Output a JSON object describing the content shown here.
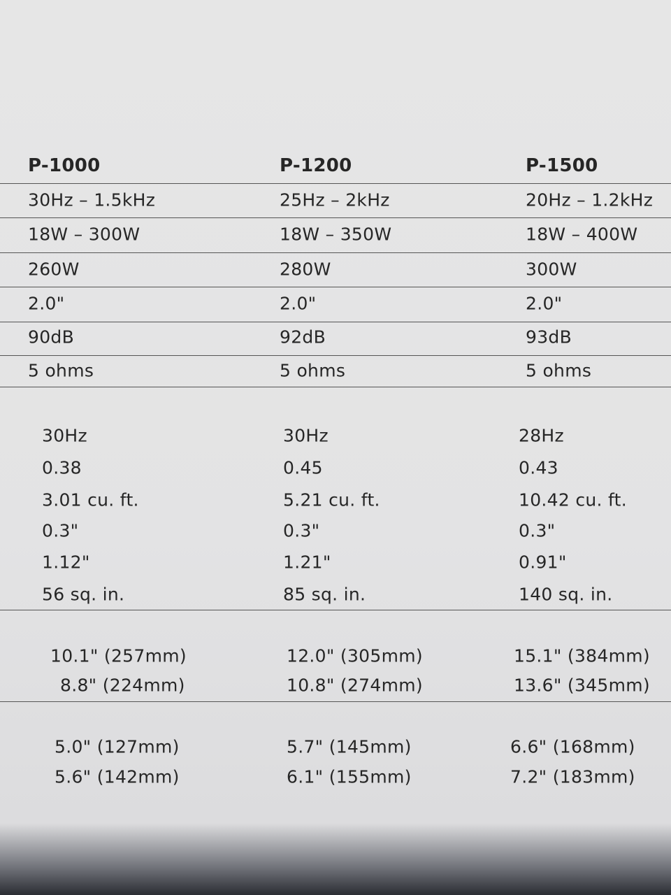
{
  "table": {
    "columns": [
      "P-1000",
      "P-1200",
      "P-1500"
    ],
    "sections": [
      [
        [
          "30Hz – 1.5kHz",
          "25Hz – 2kHz",
          "20Hz – 1.2kHz"
        ],
        [
          "18W – 300W",
          "18W – 350W",
          "18W – 400W"
        ],
        [
          "260W",
          "280W",
          "300W"
        ],
        [
          "2.0\"",
          "2.0\"",
          "2.0\""
        ],
        [
          "90dB",
          "92dB",
          "93dB"
        ],
        [
          "5 ohms",
          "5 ohms",
          "5 ohms"
        ]
      ],
      [
        [
          "30Hz",
          "30Hz",
          "28Hz"
        ],
        [
          "0.38",
          "0.45",
          "0.43"
        ],
        [
          "3.01 cu. ft.",
          "5.21 cu. ft.",
          "10.42 cu. ft."
        ],
        [
          "0.3\"",
          "0.3\"",
          "0.3\""
        ],
        [
          "1.12\"",
          "1.21\"",
          "0.91\""
        ],
        [
          "56 sq. in.",
          "85 sq. in.",
          "140 sq. in."
        ]
      ],
      [
        [
          "10.1\" (257mm)",
          "12.0\" (305mm)",
          "15.1\" (384mm)"
        ],
        [
          "8.8\" (224mm)",
          "10.8\" (274mm)",
          "13.6\" (345mm)"
        ]
      ],
      [
        [
          "5.0\" (127mm)",
          "5.7\" (145mm)",
          "6.6\" (168mm)"
        ],
        [
          "5.6\" (142mm)",
          "6.1\" (155mm)",
          "7.2\" (183mm)"
        ]
      ]
    ]
  }
}
